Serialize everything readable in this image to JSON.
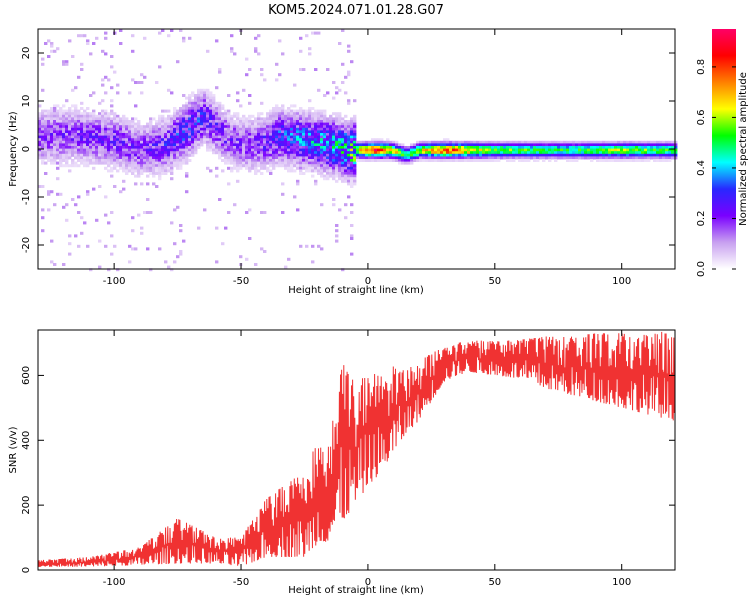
{
  "title": "KOM5.2024.071.01.28.G07",
  "chart_data": [
    {
      "type": "heatmap",
      "xlabel": "Height of straight line (km)",
      "ylabel": "Frequency (Hz)",
      "xlim": [
        -130,
        121
      ],
      "ylim": [
        -25,
        25
      ],
      "xticks": [
        -100,
        -50,
        0,
        50,
        100
      ],
      "yticks": [
        -20,
        -10,
        0,
        10,
        20
      ],
      "colorbar": {
        "label": "Normalized spectral amplitude",
        "range": [
          0.0,
          0.95
        ],
        "ticks": [
          0.0,
          0.2,
          0.4,
          0.6,
          0.8
        ],
        "colormap": [
          "#ffffff",
          "#c8a0f0",
          "#7a00ff",
          "#2828ff",
          "#00ffff",
          "#00ff00",
          "#ffff00",
          "#ff8000",
          "#ff0000",
          "#ff0066"
        ]
      },
      "ridge": {
        "x": [
          -115,
          -100,
          -90,
          -80,
          -70,
          -65,
          -55,
          -45,
          -35,
          -25,
          -15,
          -8,
          -3,
          2,
          8,
          15,
          20,
          30,
          50,
          80,
          100,
          121
        ],
        "freq": [
          3,
          2,
          0,
          1,
          5,
          7,
          2,
          1,
          3,
          2,
          1,
          0,
          0,
          0,
          0,
          -1,
          0,
          0,
          0,
          0,
          0,
          0
        ],
        "amplitude": [
          0.2,
          0.22,
          0.2,
          0.25,
          0.32,
          0.25,
          0.2,
          0.2,
          0.3,
          0.35,
          0.4,
          0.45,
          0.7,
          0.85,
          0.7,
          0.5,
          0.6,
          0.8,
          0.55,
          0.5,
          0.6,
          0.5
        ]
      }
    },
    {
      "type": "line",
      "xlabel": "Height of straight line (km)",
      "ylabel": "SNR (v/v)",
      "xlim": [
        -130,
        121
      ],
      "ylim": [
        0,
        740
      ],
      "xticks": [
        -100,
        -50,
        0,
        50,
        100
      ],
      "yticks": [
        0,
        200,
        400,
        600
      ],
      "color": "#f03232",
      "envelope": {
        "x": [
          -130,
          -110,
          -90,
          -75,
          -60,
          -50,
          -40,
          -30,
          -25,
          -20,
          -15,
          -10,
          -5,
          0,
          5,
          10,
          15,
          20,
          25,
          30,
          35,
          40,
          50,
          60,
          70,
          80,
          90,
          100,
          110,
          121
        ],
        "low": [
          10,
          10,
          15,
          20,
          20,
          10,
          40,
          40,
          40,
          80,
          90,
          150,
          200,
          260,
          300,
          360,
          420,
          460,
          520,
          580,
          600,
          610,
          600,
          590,
          560,
          540,
          520,
          500,
          480,
          460
        ],
        "high": [
          30,
          40,
          70,
          160,
          100,
          100,
          220,
          280,
          300,
          410,
          430,
          640,
          580,
          600,
          610,
          630,
          620,
          640,
          670,
          690,
          700,
          710,
          705,
          710,
          720,
          720,
          730,
          730,
          735,
          735
        ]
      }
    }
  ]
}
